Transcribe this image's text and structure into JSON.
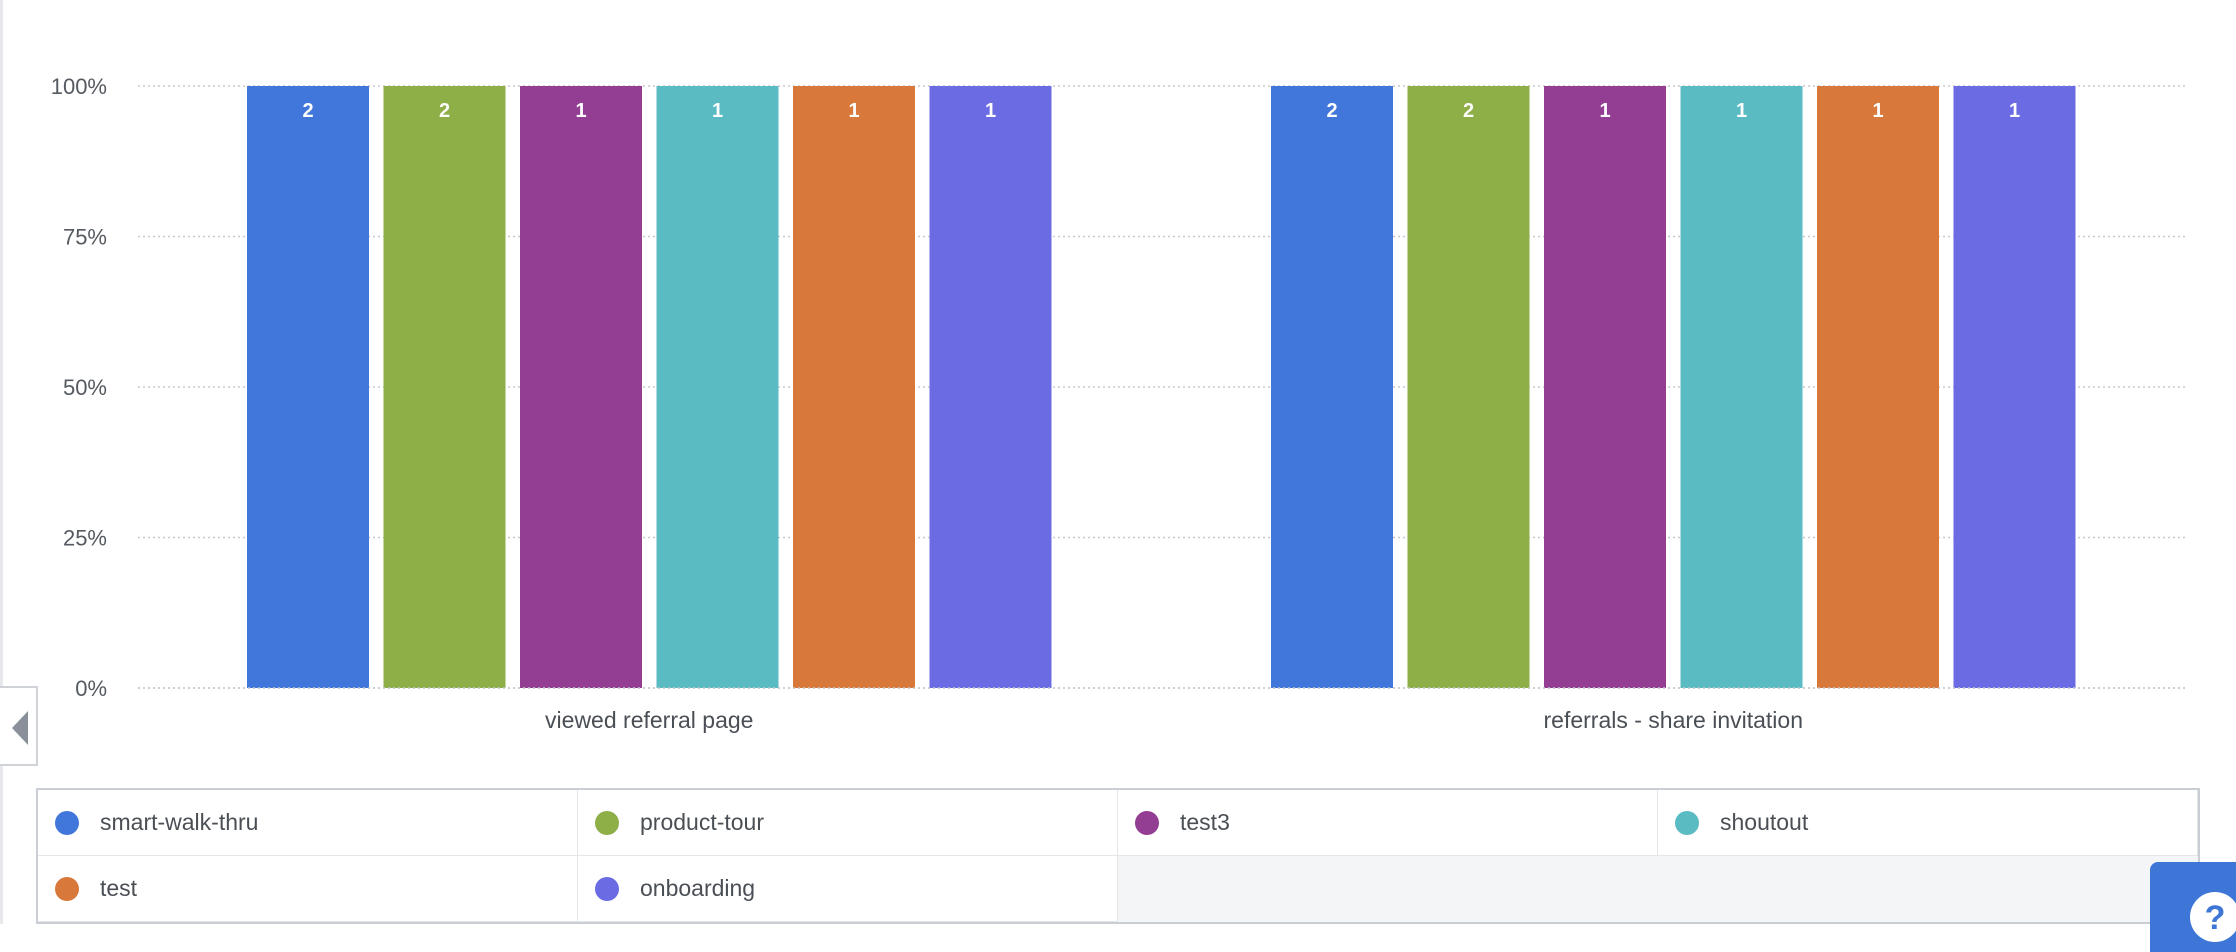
{
  "chart_data": {
    "type": "bar",
    "categories": [
      "viewed referral page",
      "referrals - share invitation"
    ],
    "series": [
      {
        "name": "smart-walk-thru",
        "color": "#4176da",
        "values": [
          100,
          100
        ],
        "labels": [
          "2",
          "2"
        ]
      },
      {
        "name": "product-tour",
        "color": "#8eae47",
        "values": [
          100,
          100
        ],
        "labels": [
          "2",
          "2"
        ]
      },
      {
        "name": "test3",
        "color": "#943e93",
        "values": [
          100,
          100
        ],
        "labels": [
          "1",
          "1"
        ]
      },
      {
        "name": "shoutout",
        "color": "#5bbbc3",
        "values": [
          100,
          100
        ],
        "labels": [
          "1",
          "1"
        ]
      },
      {
        "name": "test",
        "color": "#d8793b",
        "values": [
          100,
          100
        ],
        "labels": [
          "1",
          "1"
        ]
      },
      {
        "name": "onboarding",
        "color": "#6b6ce3",
        "values": [
          100,
          100
        ],
        "labels": [
          "1",
          "1"
        ]
      }
    ],
    "yticks": [
      "0%",
      "25%",
      "50%",
      "75%",
      "100%"
    ],
    "ylim": [
      0,
      100
    ],
    "grid": true,
    "legend_position": "bottom"
  },
  "help_button": {
    "label": "?"
  },
  "colors": {
    "grid": "#c5c9ce",
    "tick_text": "#555a61",
    "accent": "#3d76d6"
  }
}
